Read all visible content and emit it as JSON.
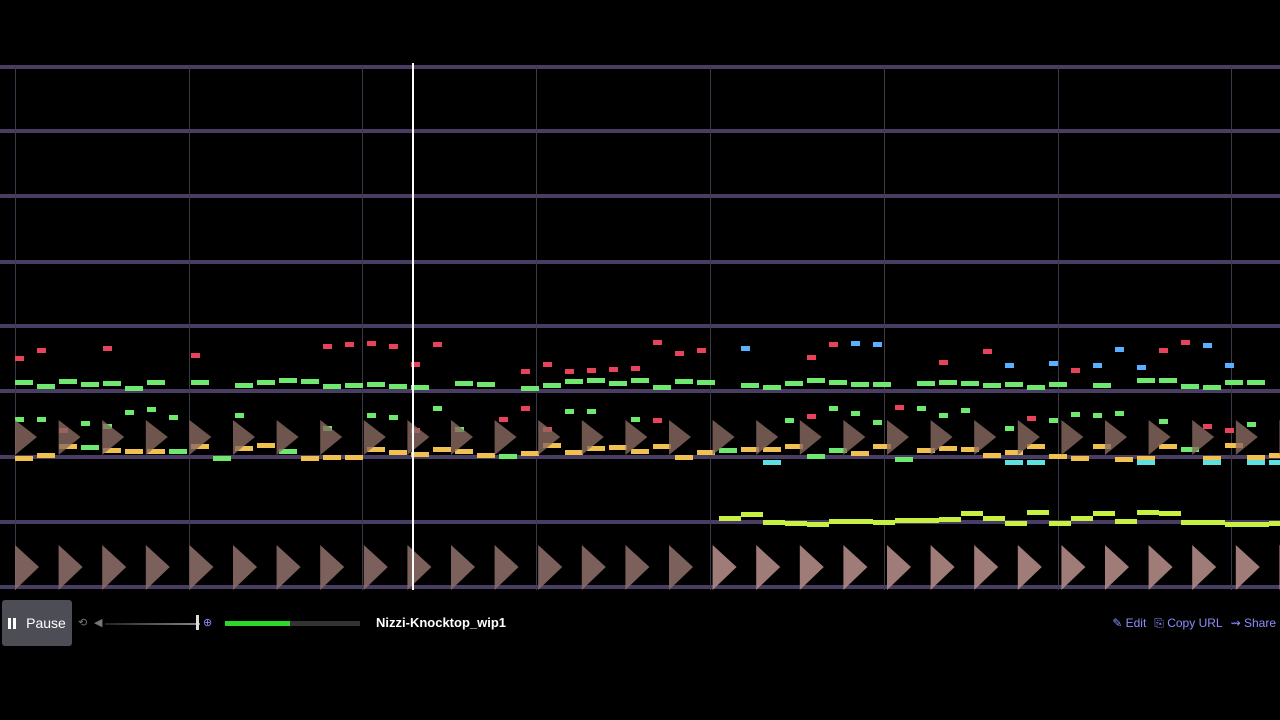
{
  "player": {
    "play_button": "Pause",
    "song_title": "Nizzi-Knocktop_wip1",
    "links": [
      "Edit",
      "Copy URL",
      "Share"
    ]
  }
}
